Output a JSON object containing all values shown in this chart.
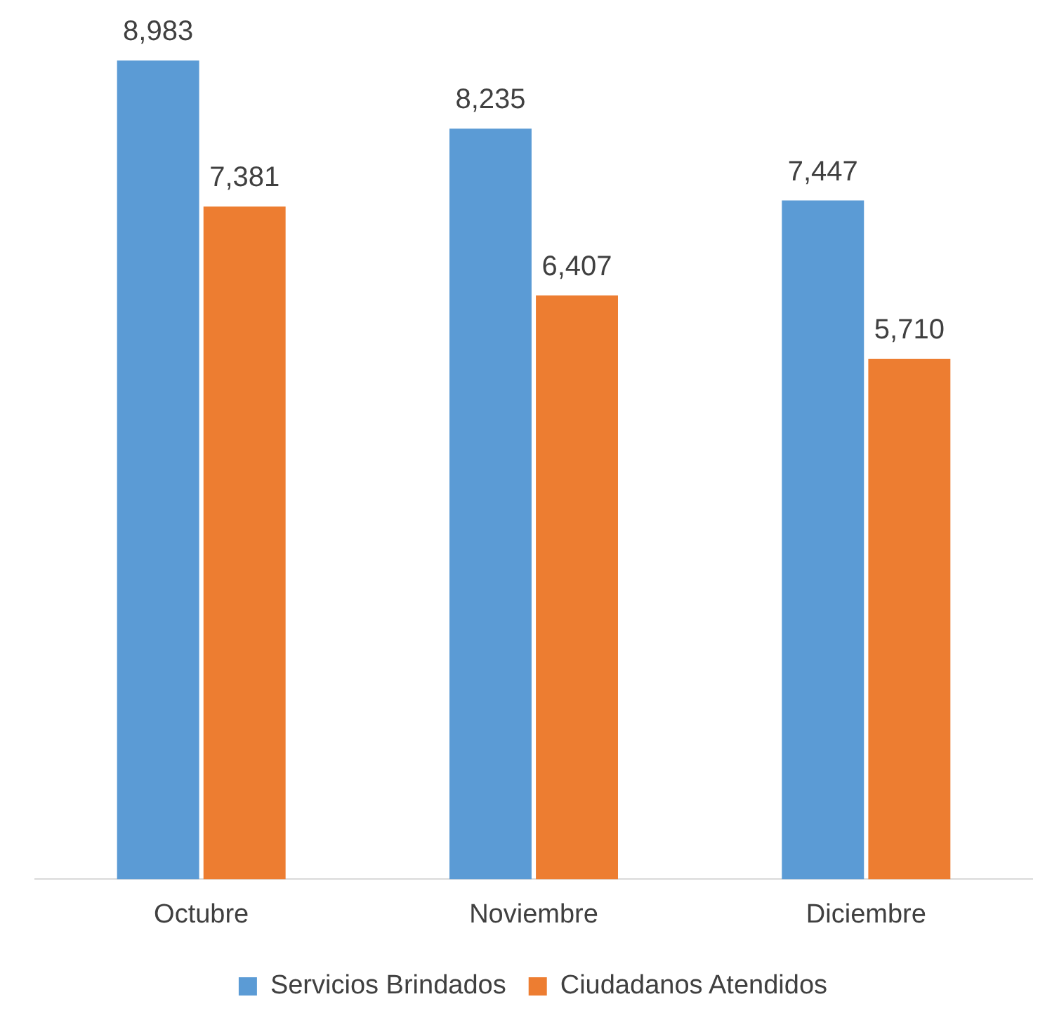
{
  "chart_data": {
    "type": "bar",
    "categories": [
      "Octubre",
      "Noviembre",
      "Diciembre"
    ],
    "series": [
      {
        "name": "Servicios Brindados",
        "color": "#5b9bd5",
        "values": [
          8983,
          8235,
          7447
        ],
        "value_labels": [
          "8,983",
          "8,235",
          "7,447"
        ]
      },
      {
        "name": "Ciudadanos Atendidos",
        "color": "#ed7d31",
        "values": [
          7381,
          6407,
          5710
        ],
        "value_labels": [
          "7,381",
          "6,407",
          "5,710"
        ]
      }
    ],
    "grid": false,
    "legend": "bottom"
  }
}
